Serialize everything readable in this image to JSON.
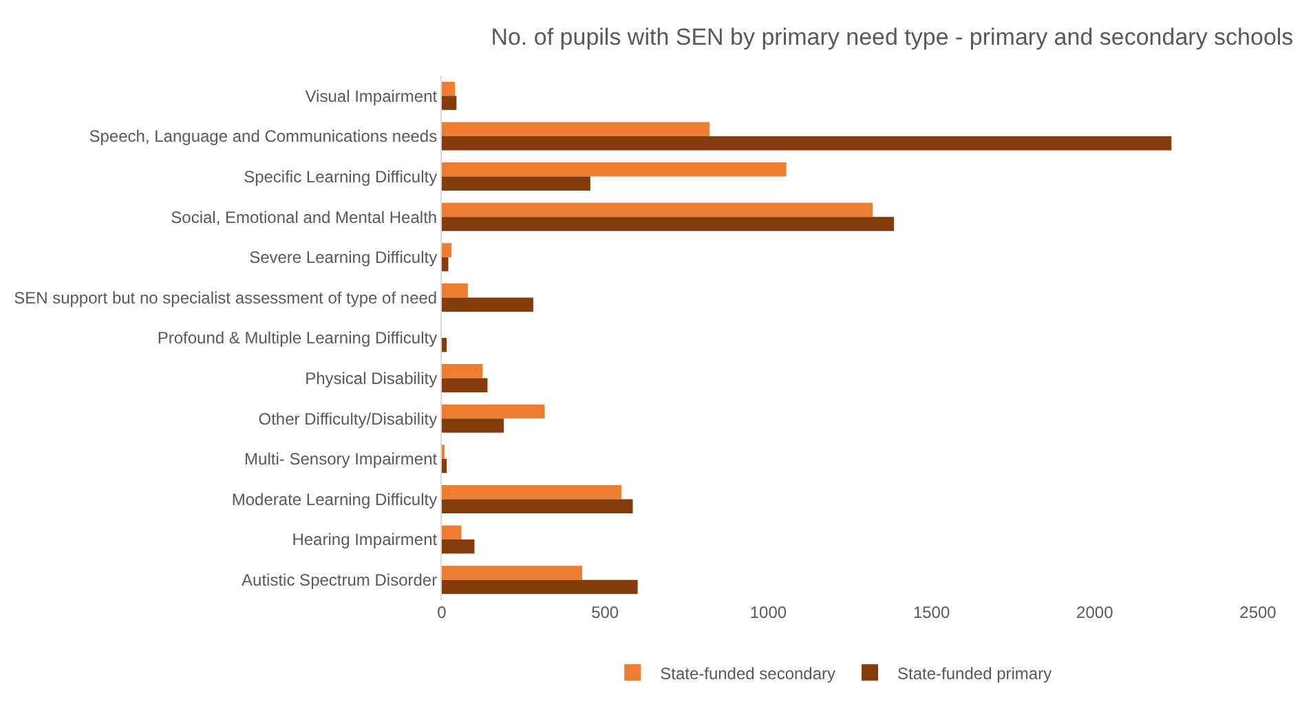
{
  "chart_data": {
    "type": "bar",
    "orientation": "horizontal",
    "title": "No. of pupils with SEN by primary need type - primary and secondary schools",
    "categories": [
      "Visual Impairment",
      "Speech, Language and Communications needs",
      "Specific Learning Difficulty",
      "Social, Emotional and Mental Health",
      "Severe Learning Difficulty",
      "SEN support but no specialist assessment of type of need",
      "Profound & Multiple Learning Difficulty",
      "Physical Disability",
      "Other Difficulty/Disability",
      "Multi- Sensory Impairment",
      "Moderate Learning Difficulty",
      "Hearing Impairment",
      "Autistic Spectrum Disorder"
    ],
    "series": [
      {
        "name": "State-funded secondary",
        "color": "#ed7d31",
        "values": [
          40,
          820,
          1055,
          1320,
          30,
          80,
          0,
          125,
          315,
          5,
          550,
          60,
          430
        ]
      },
      {
        "name": "State-funded primary",
        "color": "#843c0c",
        "values": [
          45,
          2235,
          455,
          1385,
          20,
          280,
          15,
          140,
          190,
          15,
          585,
          100,
          600
        ]
      }
    ],
    "xlim": [
      0,
      2500
    ],
    "xticks": [
      0,
      500,
      1000,
      1500,
      2000,
      2500
    ],
    "legend": "bottom"
  }
}
